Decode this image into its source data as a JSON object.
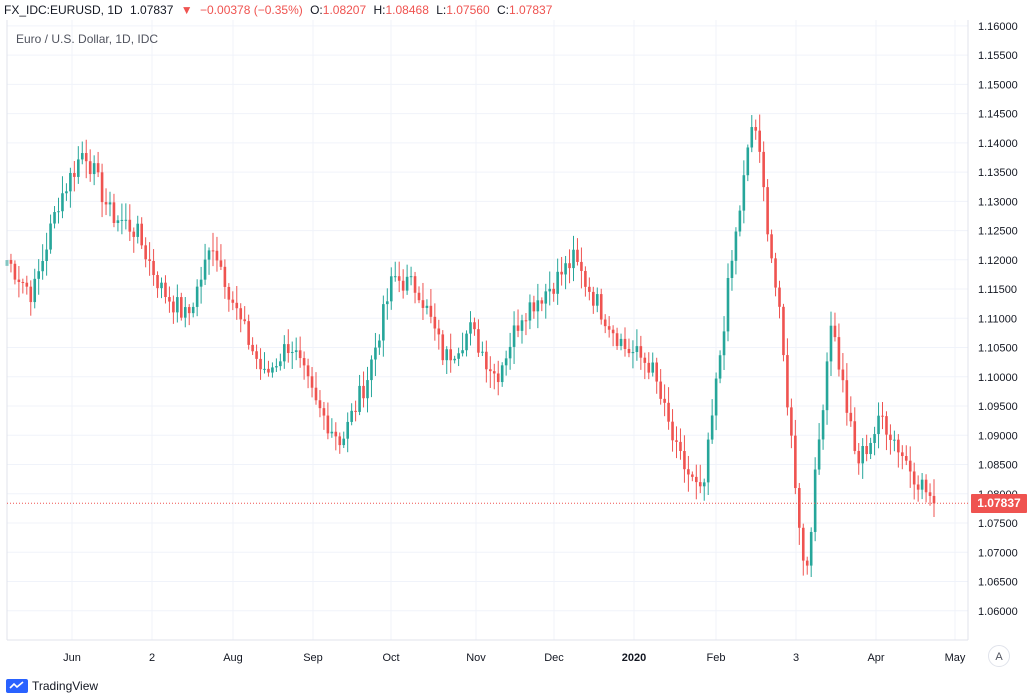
{
  "header": {
    "symbol": "FX_IDC:EURUSD, 1D",
    "last": "1.07837",
    "change_arrow": "▼",
    "change": "−0.00378 (−0.35%)",
    "o_label": "O:",
    "o_value": "1.08207",
    "h_label": "H:",
    "h_value": "1.08468",
    "l_label": "L:",
    "l_value": "1.07560",
    "c_label": "C:",
    "c_value": "1.07837"
  },
  "series_title": "Euro / U.S. Dollar, 1D, IDC",
  "price_badge": "1.07837",
  "auto_button": "A",
  "brand": "TradingView",
  "colors": {
    "up": "#26a69a",
    "down": "#ef5350",
    "grid": "#f0f3fa",
    "axis": "#e0e3eb",
    "text": "#131722"
  },
  "chart_data": {
    "type": "candlestick",
    "title": "",
    "xlabel": "",
    "ylabel": "",
    "ylim": [
      1.055,
      1.161
    ],
    "grid": true,
    "y_ticks": [
      "1.16000",
      "1.15500",
      "1.15000",
      "1.14500",
      "1.14000",
      "1.13500",
      "1.13000",
      "1.12500",
      "1.12000",
      "1.11500",
      "1.11000",
      "1.10500",
      "1.10000",
      "1.09500",
      "1.09000",
      "1.08500",
      "1.08000",
      "1.07500",
      "1.07000",
      "1.06500",
      "1.06000"
    ],
    "x_ticks": [
      "Jun",
      "2",
      "Aug",
      "Sep",
      "Oct",
      "Nov",
      "Dec",
      "2020",
      "Feb",
      "3",
      "Apr",
      "May"
    ],
    "anchors": [
      {
        "label": "start",
        "close": 1.12
      },
      {
        "label": "early Jun",
        "close": 1.114
      },
      {
        "label": "mid Jun",
        "close": 1.13
      },
      {
        "label": "late Jun",
        "close": 1.139
      },
      {
        "label": "early Jul",
        "close": 1.128
      },
      {
        "label": "mid Jul",
        "close": 1.125
      },
      {
        "label": "late Jul",
        "close": 1.115
      },
      {
        "label": "early Aug",
        "close": 1.11
      },
      {
        "label": "mid Aug",
        "close": 1.123
      },
      {
        "label": "late Aug",
        "close": 1.11
      },
      {
        "label": "early Sep",
        "close": 1.1
      },
      {
        "label": "mid Sep",
        "close": 1.106
      },
      {
        "label": "late Sep",
        "close": 1.095
      },
      {
        "label": "early Oct",
        "close": 1.089
      },
      {
        "label": "mid Oct",
        "close": 1.1
      },
      {
        "label": "late Oct",
        "close": 1.117
      },
      {
        "label": "early Nov",
        "close": 1.115
      },
      {
        "label": "mid Nov",
        "close": 1.103
      },
      {
        "label": "late Nov",
        "close": 1.108
      },
      {
        "label": "early Dec",
        "close": 1.1
      },
      {
        "label": "mid Dec",
        "close": 1.111
      },
      {
        "label": "late Dec",
        "close": 1.115
      },
      {
        "label": "early Jan",
        "close": 1.12
      },
      {
        "label": "mid Jan",
        "close": 1.112
      },
      {
        "label": "late Jan",
        "close": 1.105
      },
      {
        "label": "early Feb",
        "close": 1.102
      },
      {
        "label": "mid Feb",
        "close": 1.087
      },
      {
        "label": "late Feb",
        "close": 1.079
      },
      {
        "label": "early Mar",
        "close": 1.115
      },
      {
        "label": "Mar peak",
        "close": 1.145
      },
      {
        "label": "mid Mar",
        "close": 1.11
      },
      {
        "label": "Mar low",
        "close": 1.065
      },
      {
        "label": "late Mar",
        "close": 1.11
      },
      {
        "label": "early Apr",
        "close": 1.085
      },
      {
        "label": "mid Apr",
        "close": 1.093
      },
      {
        "label": "late Apr",
        "close": 1.085
      },
      {
        "label": "end",
        "close": 1.0784
      }
    ]
  }
}
